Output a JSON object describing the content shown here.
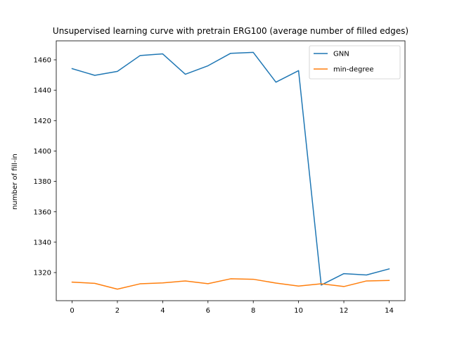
{
  "chart_data": {
    "type": "line",
    "title": "Unsupervised learning curve with pretrain ERG100 (average number of filled edges)",
    "xlabel": "",
    "ylabel": "number of fill-in",
    "xlim": [
      -0.7,
      14.7
    ],
    "ylim": [
      1301.5,
      1472.5
    ],
    "xticks": [
      0,
      2,
      4,
      6,
      8,
      10,
      12,
      14
    ],
    "yticks": [
      1320,
      1340,
      1360,
      1380,
      1400,
      1420,
      1440,
      1460
    ],
    "grid": false,
    "legend_position": "top-right",
    "x": [
      0,
      1,
      2,
      3,
      4,
      5,
      6,
      7,
      8,
      9,
      10,
      11,
      12,
      13,
      14
    ],
    "series": [
      {
        "name": "GNN",
        "color": "#1f77b4",
        "values": [
          1454.2,
          1449.8,
          1452.4,
          1462.8,
          1463.9,
          1450.5,
          1456.1,
          1464.3,
          1464.9,
          1445.3,
          1452.9,
          1311.8,
          1319.3,
          1318.4,
          1322.4
        ]
      },
      {
        "name": "min-degree",
        "color": "#ff7f0e",
        "values": [
          1313.7,
          1312.9,
          1309.1,
          1312.6,
          1313.2,
          1314.5,
          1312.7,
          1315.9,
          1315.6,
          1313.1,
          1311.1,
          1312.6,
          1310.8,
          1314.5,
          1314.8
        ]
      }
    ]
  }
}
